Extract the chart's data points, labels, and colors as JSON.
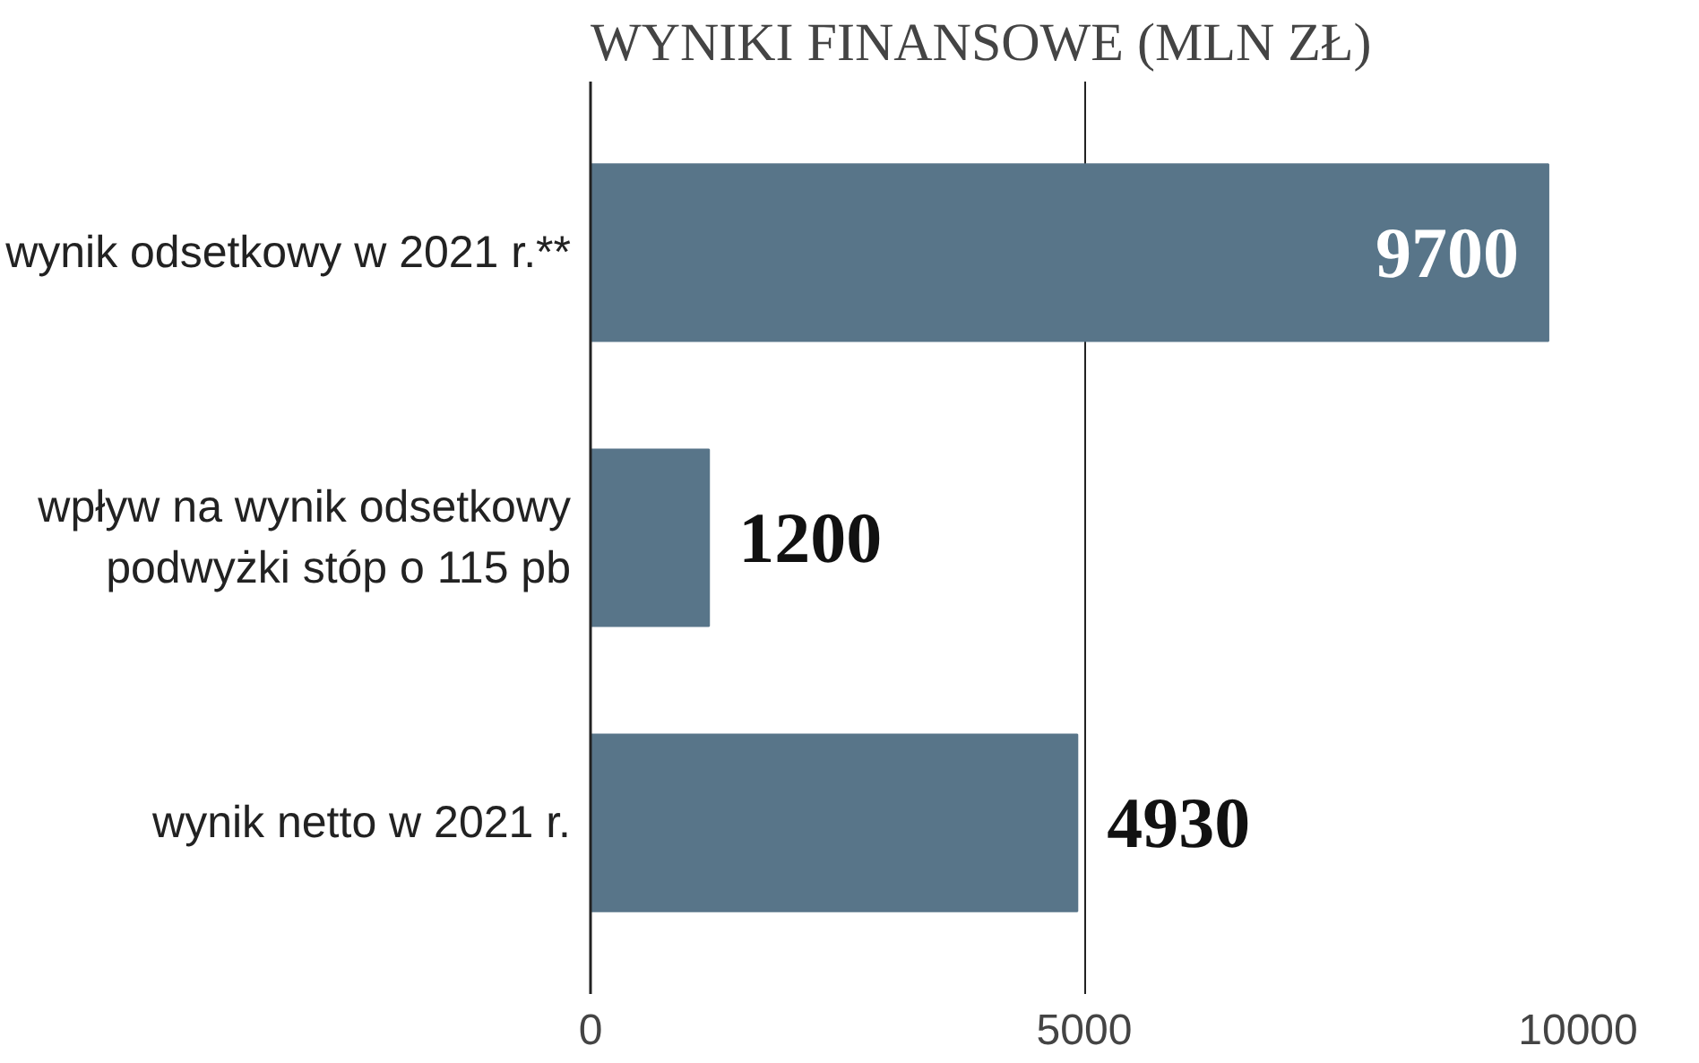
{
  "chart_data": {
    "type": "bar",
    "orientation": "horizontal",
    "title": "WYNIKI FINANSOWE (MLN ZŁ)",
    "categories": [
      "wynik odsetkowy w 2021 r.**",
      "wpływ na wynik odsetkowy\npodwyżki stóp o 115 pb",
      "wynik netto w 2021 r."
    ],
    "values": [
      9700,
      1200,
      4930
    ],
    "color": "#587589",
    "xlim": [
      0,
      10000
    ],
    "xticks": [
      0,
      5000,
      10000
    ],
    "grid": "x",
    "data_labels": true
  }
}
